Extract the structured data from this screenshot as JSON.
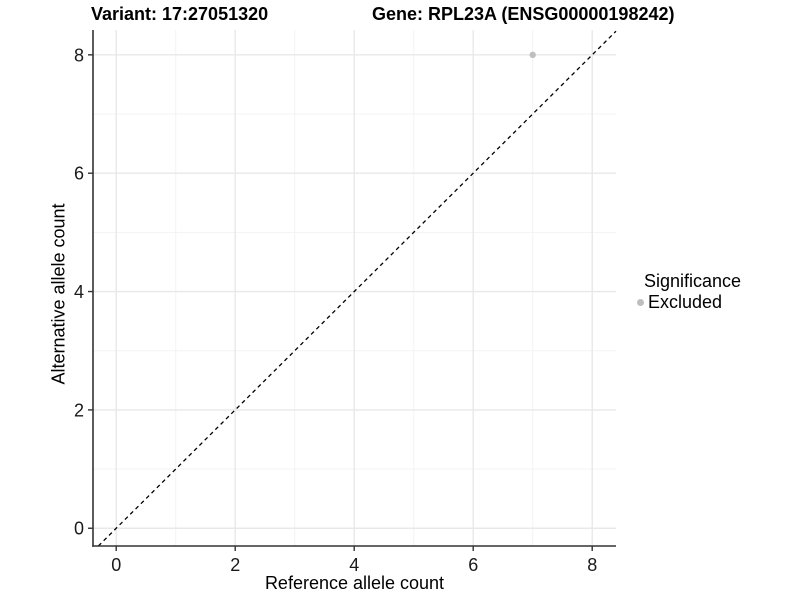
{
  "titles": {
    "left": "Variant: 17:27051320",
    "right": "Gene: RPL23A (ENSG00000198242)"
  },
  "chart_data": {
    "type": "scatter",
    "title_left": "Variant: 17:27051320",
    "title_right": "Gene: RPL23A (ENSG00000198242)",
    "xlabel": "Reference allele count",
    "ylabel": "Alternative allele count",
    "xticks": [
      0,
      2,
      4,
      6,
      8
    ],
    "yticks": [
      0,
      2,
      4,
      6,
      8
    ],
    "xminor": [
      1,
      3,
      5,
      7
    ],
    "yminor": [
      1,
      3,
      5,
      7
    ],
    "xlim": [
      -0.39,
      8.4
    ],
    "ylim": [
      -0.3,
      8.42
    ],
    "grid": "major and minor, light gray on white panel",
    "reference_line": {
      "type": "identity y=x",
      "style": "dashed",
      "color": "#000000"
    },
    "series": [
      {
        "name": "Excluded",
        "color": "#bebebe",
        "points": [
          {
            "x": 7,
            "y": 8
          }
        ]
      }
    ],
    "legend": {
      "title": "Significance",
      "position": "right",
      "items": [
        {
          "label": "Excluded",
          "color": "#bebebe"
        }
      ]
    },
    "colors": {
      "point": "#bebebe",
      "grid_major": "#e8e8e8",
      "grid_minor": "#f3f3f3",
      "axis": "#333333",
      "tick_text": "#1a1a1a",
      "ref_line": "#000000"
    }
  }
}
